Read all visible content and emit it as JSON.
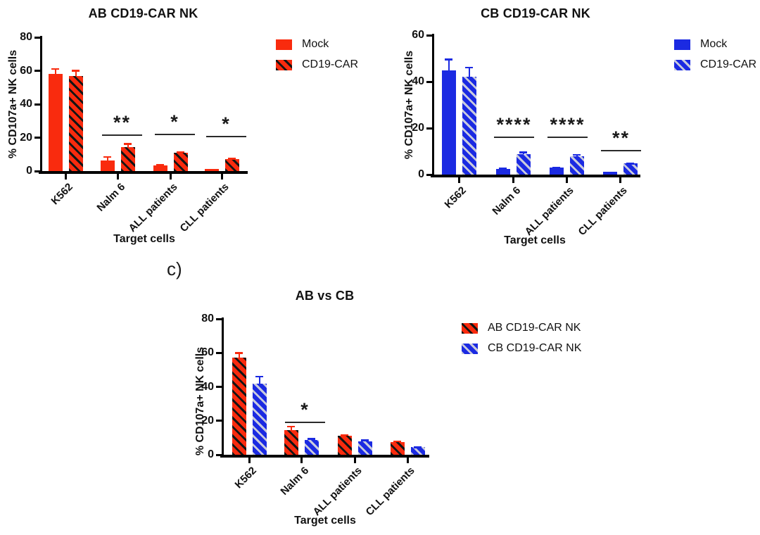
{
  "figure_label": "c)",
  "colors": {
    "ab_red": "#f92b0e",
    "cb_blue": "#1b2ae2",
    "hatch_on_red": "#141414",
    "hatch_on_blue": "#c9cbdd",
    "axis": "#000000"
  },
  "chart_data": [
    {
      "type": "bar",
      "title": "AB CD19-CAR NK",
      "xlabel": "Target cells",
      "ylabel": "% CD107a+ NK cells",
      "categories": [
        "K562",
        "Nalm 6",
        "ALL patients",
        "CLL patients"
      ],
      "ylim": [
        0,
        80
      ],
      "yticks": [
        0,
        20,
        40,
        60,
        80
      ],
      "legend_position": "right",
      "series": [
        {
          "name": "Mock",
          "color": "#f92b0e",
          "hatch": false,
          "hatch_color": "#141414",
          "values": [
            58,
            6.5,
            3.5,
            1.2
          ],
          "errors": [
            3.5,
            2.5,
            0.6,
            0
          ]
        },
        {
          "name": "CD19-CAR",
          "color": "#f92b0e",
          "hatch": true,
          "hatch_color": "#141414",
          "values": [
            57,
            14.5,
            11,
            7
          ],
          "errors": [
            3.5,
            2.2,
            1,
            0.8
          ]
        }
      ],
      "significance": [
        {
          "category": "Nalm 6",
          "category_index": 1,
          "stars": "**",
          "line_y": 22
        },
        {
          "category": "ALL patients",
          "category_index": 2,
          "stars": "*",
          "line_y": 22.5
        },
        {
          "category": "CLL patients",
          "category_index": 3,
          "stars": "*",
          "line_y": 21
        }
      ]
    },
    {
      "type": "bar",
      "title": "CB CD19-CAR NK",
      "xlabel": "Target cells",
      "ylabel": "% CD107a+ NK cells",
      "categories": [
        "K562",
        "Nalm 6",
        "ALL patients",
        "CLL patients"
      ],
      "ylim": [
        0,
        60
      ],
      "yticks": [
        0,
        20,
        40,
        60
      ],
      "legend_position": "right",
      "series": [
        {
          "name": "Mock",
          "color": "#1b2ae2",
          "hatch": false,
          "hatch_color": "#c9cbdd",
          "values": [
            45,
            2.5,
            3,
            1.3
          ],
          "errors": [
            5,
            0.4,
            0.4,
            0
          ]
        },
        {
          "name": "CD19-CAR",
          "color": "#1b2ae2",
          "hatch": true,
          "hatch_color": "#c9cbdd",
          "values": [
            42,
            8.7,
            7.8,
            4.8
          ],
          "errors": [
            4.5,
            1.2,
            1,
            0.3
          ]
        }
      ],
      "significance": [
        {
          "category": "Nalm 6",
          "category_index": 1,
          "stars": "****",
          "line_y": 16.3
        },
        {
          "category": "ALL patients",
          "category_index": 2,
          "stars": "****",
          "line_y": 16.3
        },
        {
          "category": "CLL patients",
          "category_index": 3,
          "stars": "**",
          "line_y": 10.7
        }
      ]
    },
    {
      "type": "bar",
      "title": "AB vs CB",
      "xlabel": "Target cells",
      "ylabel": "% CD107a+ NK cells",
      "categories": [
        "K562",
        "Nalm 6",
        "ALL patients",
        "CLL patients"
      ],
      "ylim": [
        0,
        80
      ],
      "yticks": [
        0,
        20,
        40,
        60,
        80
      ],
      "legend_position": "right",
      "series": [
        {
          "name": "AB CD19-CAR NK",
          "color": "#f92b0e",
          "hatch": true,
          "hatch_color": "#141414",
          "values": [
            57,
            14.5,
            11,
            7.3
          ],
          "errors": [
            3.5,
            2.5,
            1.2,
            1
          ]
        },
        {
          "name": "CB CD19-CAR NK",
          "color": "#1b2ae2",
          "hatch": true,
          "hatch_color": "#c9cbdd",
          "values": [
            42,
            8.8,
            8,
            4.5
          ],
          "errors": [
            4.5,
            1,
            1,
            0.4
          ]
        }
      ],
      "significance": [
        {
          "category": "Nalm 6",
          "category_index": 1,
          "stars": "*",
          "line_y": 19.3
        }
      ]
    }
  ]
}
